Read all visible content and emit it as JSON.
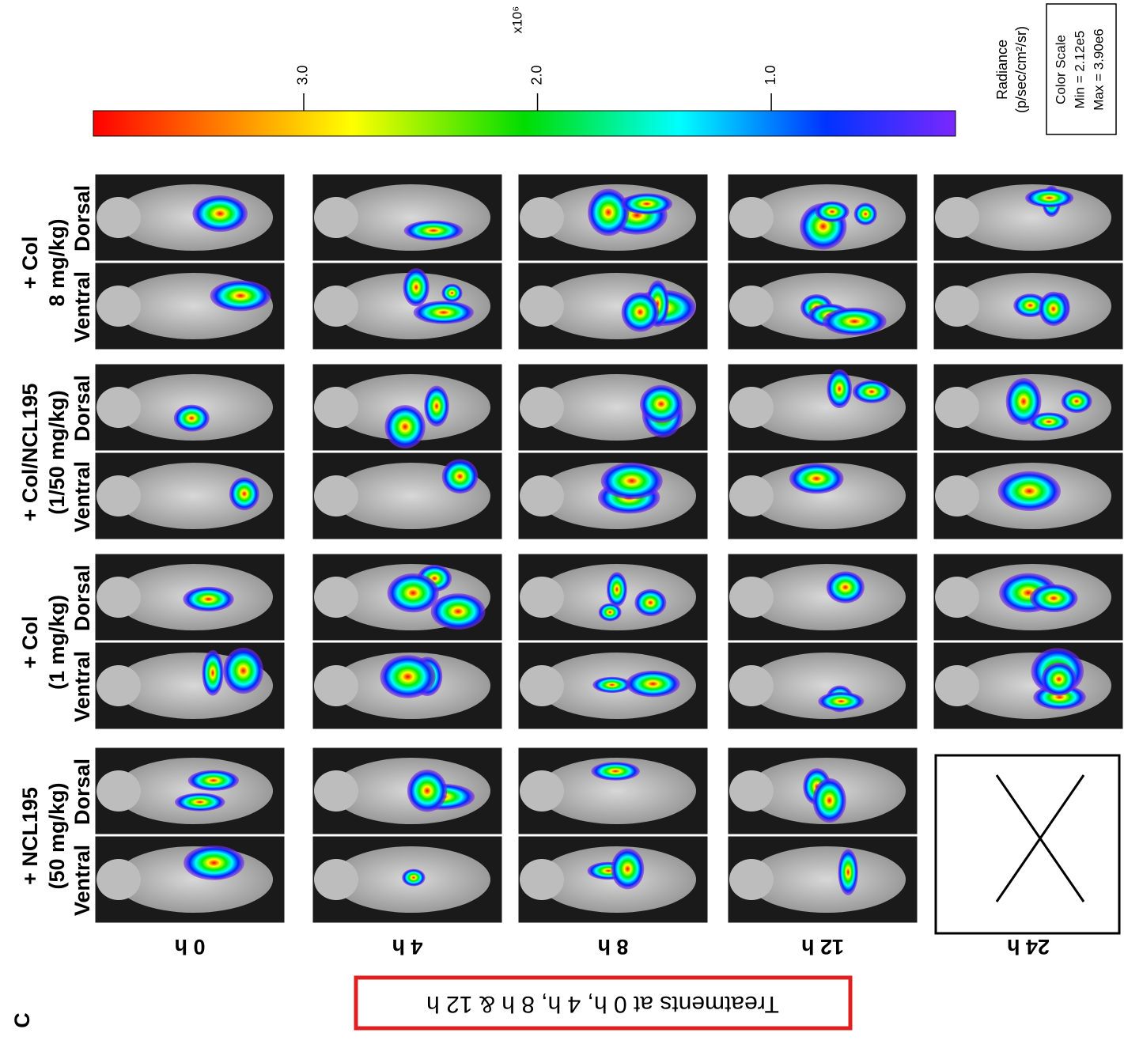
{
  "panel_label": "C",
  "treatment_note": "Treatments at 0 h, 4 h, 8 h & 12 h",
  "time_points": [
    "0 h",
    "4 h",
    "8 h",
    "12 h",
    "24 h"
  ],
  "groups": [
    {
      "title": "+ NCL195",
      "dose": "(50 mg/kg)"
    },
    {
      "title": "+ Col",
      "dose": "(1 mg/kg)"
    },
    {
      "title": "+ Col/NCL195",
      "dose": "(1/50 mg/kg)"
    },
    {
      "title": "+ Col",
      "dose": "8 mg/kg)"
    }
  ],
  "view_labels": [
    "Ventral",
    "Dorsal"
  ],
  "color_scale": {
    "quantity": "Radiance",
    "unit": "(p/sec/cm²/sr)",
    "multiplier": "x10⁶",
    "range": [
      0.212,
      3.9
    ],
    "ticks": [
      {
        "value": 1,
        "label": "1.0"
      },
      {
        "value": 2,
        "label": "2.0"
      },
      {
        "value": 3,
        "label": "3.0"
      }
    ],
    "box_title": "Color Scale",
    "min": "Min = 2.12e5",
    "max": "Max = 3.90e6"
  }
}
